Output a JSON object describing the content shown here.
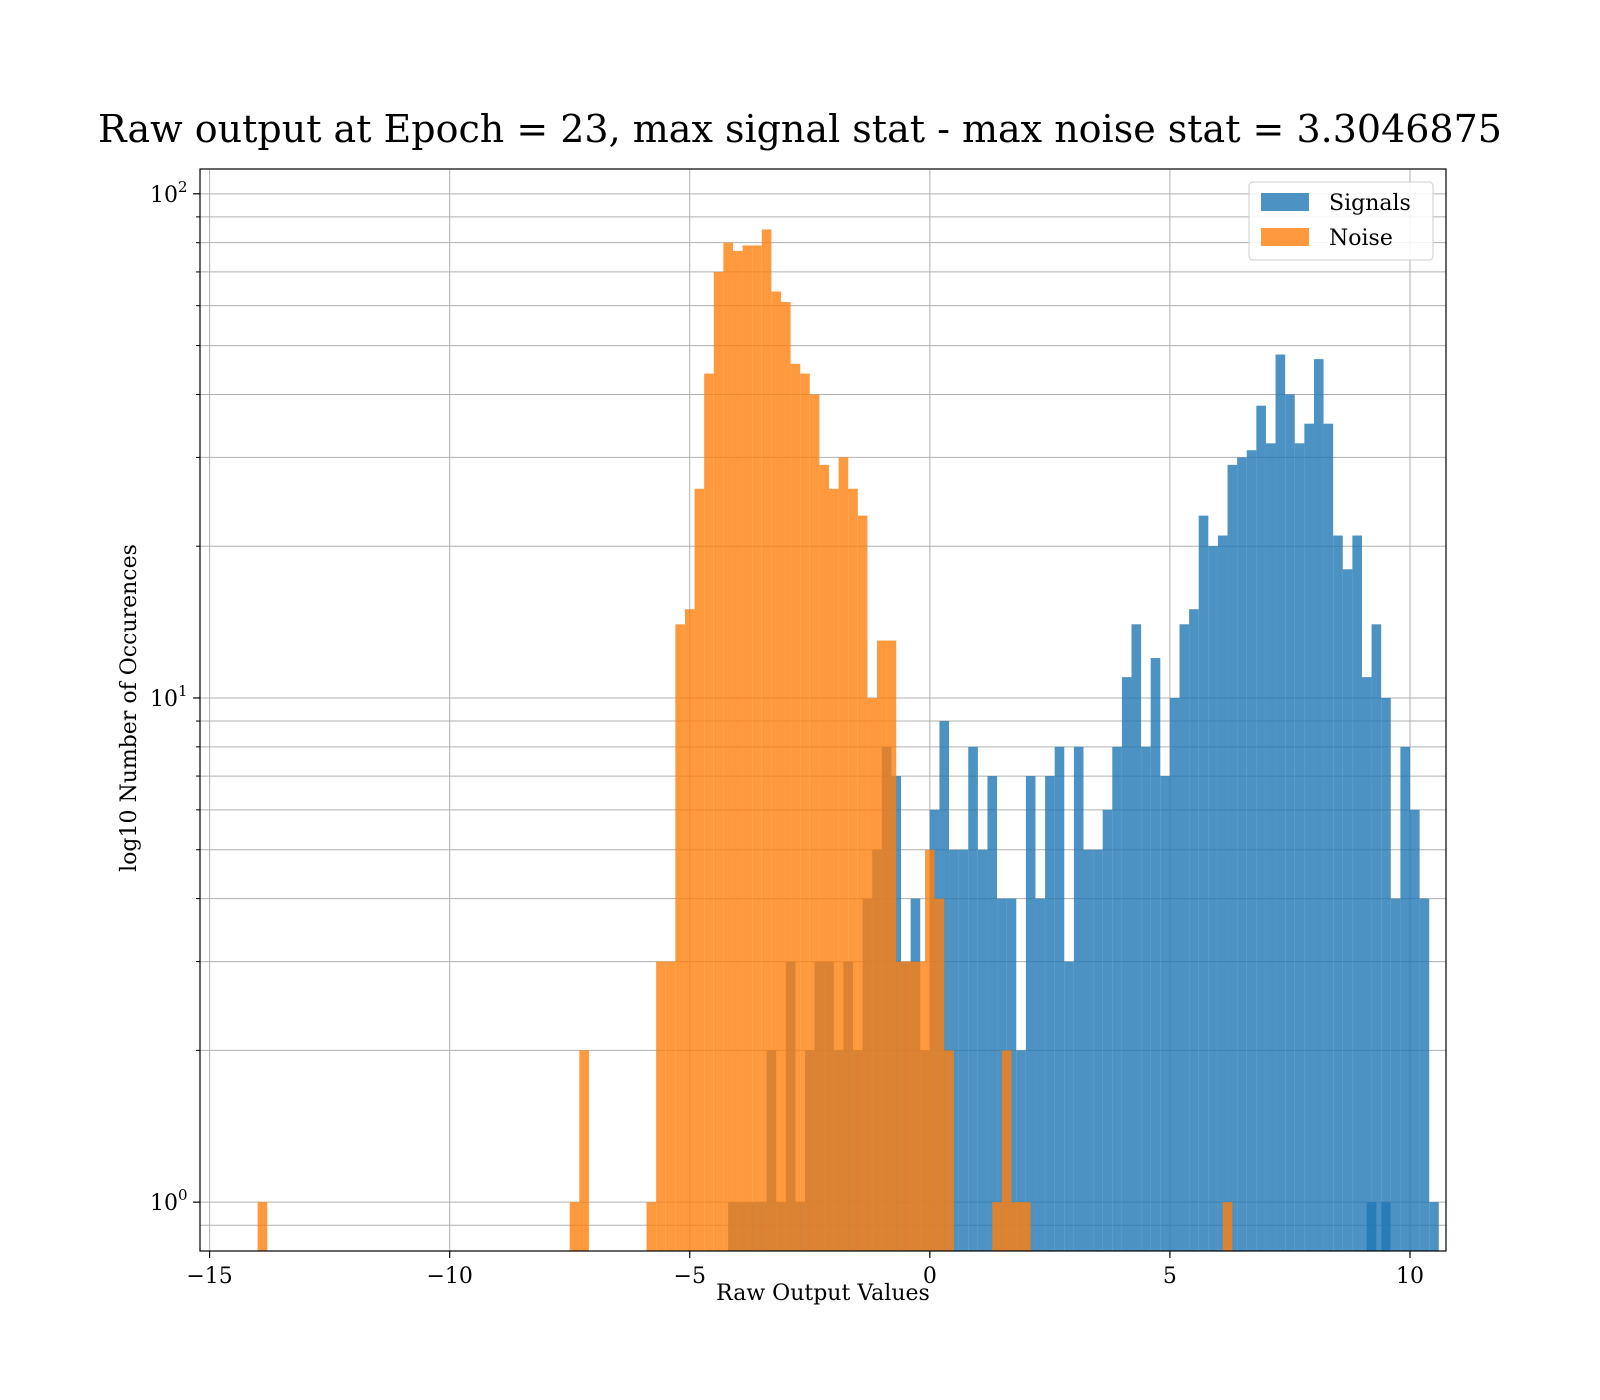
{
  "chart_data": {
    "type": "histogram",
    "title": "Raw output at Epoch = 23, max signal stat - max noise stat = 3.3046875",
    "xlabel": "Raw Output Values",
    "ylabel": "log10 Number of Occurences",
    "xlim": [
      -15.2,
      10.75
    ],
    "ylim": [
      0.8,
      112
    ],
    "yscale": "log",
    "grid": true,
    "legend_position": "top-right",
    "x_ticks": [
      {
        "value": -15,
        "label": "−15"
      },
      {
        "value": -10,
        "label": "−10"
      },
      {
        "value": -5,
        "label": "−5"
      },
      {
        "value": 0,
        "label": "0"
      },
      {
        "value": 5,
        "label": "5"
      },
      {
        "value": 10,
        "label": "10"
      }
    ],
    "y_ticks": [
      {
        "value": 1,
        "base": "10",
        "exp": "0"
      },
      {
        "value": 10,
        "base": "10",
        "exp": "1"
      },
      {
        "value": 100,
        "base": "10",
        "exp": "2"
      }
    ],
    "series": [
      {
        "name": "Signals",
        "color": "#1f77b4",
        "alpha": 0.8,
        "bin_width": 0.2,
        "bins": [
          [
            -4.1,
            1
          ],
          [
            -3.9,
            1
          ],
          [
            -3.7,
            1
          ],
          [
            -3.5,
            1
          ],
          [
            -3.3,
            2
          ],
          [
            -3.1,
            1
          ],
          [
            -2.9,
            3
          ],
          [
            -2.7,
            1
          ],
          [
            -2.5,
            2
          ],
          [
            -2.3,
            3
          ],
          [
            -2.1,
            3
          ],
          [
            -1.9,
            2
          ],
          [
            -1.7,
            3
          ],
          [
            -1.5,
            2
          ],
          [
            -1.3,
            4
          ],
          [
            -1.1,
            5
          ],
          [
            -0.9,
            8
          ],
          [
            -0.7,
            7
          ],
          [
            -0.5,
            3
          ],
          [
            -0.3,
            4
          ],
          [
            -0.1,
            2
          ],
          [
            0.1,
            6
          ],
          [
            0.3,
            9
          ],
          [
            0.5,
            5
          ],
          [
            0.7,
            5
          ],
          [
            0.9,
            8
          ],
          [
            1.1,
            5
          ],
          [
            1.3,
            7
          ],
          [
            1.5,
            4
          ],
          [
            1.7,
            4
          ],
          [
            1.9,
            2
          ],
          [
            2.1,
            7
          ],
          [
            2.3,
            4
          ],
          [
            2.5,
            7
          ],
          [
            2.7,
            8
          ],
          [
            2.9,
            3
          ],
          [
            3.1,
            8
          ],
          [
            3.3,
            5
          ],
          [
            3.5,
            5
          ],
          [
            3.7,
            6
          ],
          [
            3.9,
            8
          ],
          [
            4.1,
            11
          ],
          [
            4.3,
            14
          ],
          [
            4.5,
            8
          ],
          [
            4.7,
            12
          ],
          [
            4.9,
            7
          ],
          [
            5.1,
            10
          ],
          [
            5.3,
            14
          ],
          [
            5.5,
            15
          ],
          [
            5.7,
            23
          ],
          [
            5.9,
            20
          ],
          [
            6.1,
            21
          ],
          [
            6.3,
            29
          ],
          [
            6.5,
            30
          ],
          [
            6.7,
            31
          ],
          [
            6.9,
            38
          ],
          [
            7.1,
            32
          ],
          [
            7.3,
            48
          ],
          [
            7.5,
            40
          ],
          [
            7.7,
            32
          ],
          [
            7.9,
            35
          ],
          [
            8.1,
            47
          ],
          [
            8.3,
            35
          ],
          [
            8.5,
            21
          ],
          [
            8.7,
            18
          ],
          [
            8.9,
            21
          ],
          [
            9.1,
            11
          ],
          [
            9.3,
            14
          ],
          [
            9.5,
            10
          ],
          [
            9.7,
            4
          ],
          [
            9.9,
            8
          ],
          [
            10.1,
            6
          ],
          [
            10.3,
            4
          ],
          [
            10.5,
            1
          ],
          [
            9.2,
            1
          ],
          [
            9.5,
            1
          ]
        ]
      },
      {
        "name": "Noise",
        "color": "#ff7f0e",
        "alpha": 0.8,
        "bin_width": 0.2,
        "bins": [
          [
            -13.9,
            1
          ],
          [
            -7.4,
            1
          ],
          [
            -7.2,
            2
          ],
          [
            -5.8,
            1
          ],
          [
            -5.6,
            3
          ],
          [
            -5.4,
            3
          ],
          [
            -5.2,
            14
          ],
          [
            -5.0,
            15
          ],
          [
            -4.8,
            26
          ],
          [
            -4.6,
            44
          ],
          [
            -4.4,
            70
          ],
          [
            -4.2,
            80
          ],
          [
            -4.0,
            77
          ],
          [
            -3.8,
            79
          ],
          [
            -3.6,
            79
          ],
          [
            -3.4,
            85
          ],
          [
            -3.2,
            64
          ],
          [
            -3.0,
            61
          ],
          [
            -2.8,
            46
          ],
          [
            -2.6,
            44
          ],
          [
            -2.4,
            40
          ],
          [
            -2.2,
            29
          ],
          [
            -2.0,
            26
          ],
          [
            -1.8,
            30
          ],
          [
            -1.6,
            26
          ],
          [
            -1.4,
            23
          ],
          [
            -1.2,
            10
          ],
          [
            -1.0,
            13
          ],
          [
            -0.8,
            13
          ],
          [
            -0.6,
            3
          ],
          [
            -0.4,
            3
          ],
          [
            -0.2,
            3
          ],
          [
            0.0,
            5
          ],
          [
            0.2,
            4
          ],
          [
            0.4,
            2
          ],
          [
            1.4,
            1
          ],
          [
            1.6,
            2
          ],
          [
            1.8,
            1
          ],
          [
            2.0,
            1
          ],
          [
            6.2,
            1
          ]
        ]
      }
    ]
  }
}
